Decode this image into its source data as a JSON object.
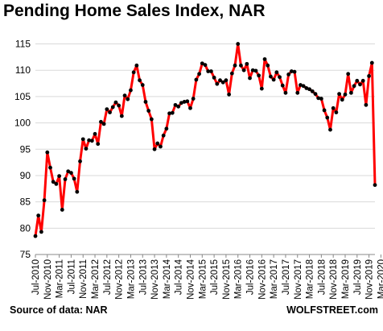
{
  "chart_data": {
    "type": "line",
    "title": "Pending Home Sales Index, NAR",
    "xlabel": "",
    "ylabel": "",
    "ylim": [
      75,
      116
    ],
    "yticks": [
      75,
      80,
      85,
      90,
      95,
      100,
      105,
      110,
      115
    ],
    "xtick_labels": [
      "Jul-2010",
      "Nov-2010",
      "Mar-2011",
      "Jul-2011",
      "Nov-2011",
      "Mar-2012",
      "Jul-2012",
      "Nov-2012",
      "Mar-2013",
      "Jul-2013",
      "Nov-2013",
      "Mar-2014",
      "Jul-2014",
      "Nov-2014",
      "Mar-2015",
      "Jul-2015",
      "Nov-2015",
      "Mar-2016",
      "Jul-2016",
      "Nov-2016",
      "Mar-2017",
      "Jul-2017",
      "Nov-2017",
      "Mar-2018",
      "Jul-2018",
      "Nov-2018",
      "Mar-2019",
      "Jul-2019",
      "Nov-2019",
      "Mar-2020"
    ],
    "grid": "horizontal",
    "legend": "none",
    "line_color": "#ff0000",
    "marker_color": "#000000",
    "series": [
      {
        "x_start": "Jul-2010",
        "x_end": "Mar-2020",
        "frequency": "monthly",
        "values": [
          78.5,
          82.4,
          79.3,
          85.3,
          94.4,
          91.5,
          88.8,
          88.4,
          89.9,
          83.5,
          89.3,
          90.8,
          90.5,
          89.4,
          86.9,
          92.7,
          96.9,
          95.1,
          96.7,
          96.6,
          97.9,
          96.0,
          100.2,
          99.8,
          102.6,
          102.0,
          103.0,
          103.9,
          103.3,
          101.3,
          105.2,
          104.5,
          106.2,
          109.6,
          110.9,
          108.1,
          107.2,
          104.0,
          102.3,
          100.7,
          95.0,
          96.1,
          95.5,
          97.6,
          98.9,
          101.8,
          101.9,
          103.4,
          103.1,
          103.8,
          104.0,
          104.1,
          102.8,
          104.6,
          108.2,
          109.3,
          111.3,
          111.0,
          109.8,
          109.8,
          108.6,
          107.4,
          108.1,
          107.7,
          108.1,
          105.4,
          109.4,
          110.9,
          115.0,
          110.9,
          110.0,
          111.2,
          108.5,
          110.0,
          109.9,
          109.0,
          106.5,
          112.1,
          110.9,
          108.8,
          108.2,
          109.6,
          108.7,
          107.1,
          105.7,
          109.2,
          109.8,
          109.7,
          105.7,
          107.2,
          107.0,
          106.6,
          106.4,
          106.0,
          105.5,
          104.7,
          104.6,
          102.4,
          101.0,
          98.7,
          102.8,
          102.0,
          105.5,
          104.4,
          105.4,
          109.3,
          105.7,
          107.0,
          108.0,
          107.3,
          108.0,
          103.4,
          108.9,
          111.4,
          88.2
        ]
      }
    ]
  },
  "texts": {
    "source": "Source of data: NAR",
    "watermark": "WOLFSTREET.com"
  }
}
